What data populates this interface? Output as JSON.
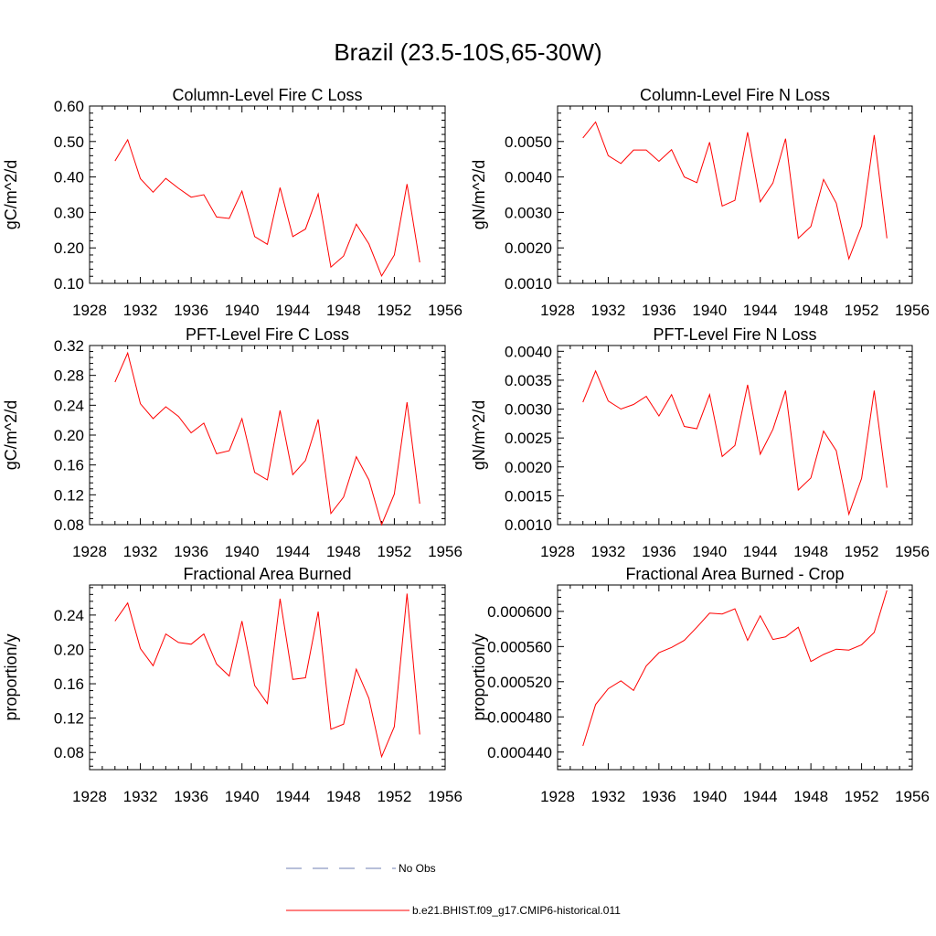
{
  "figure": {
    "title": "Brazil (23.5-10S,65-30W)",
    "colors": {
      "model": "#ff0000",
      "obs": "#6f7fb3",
      "axes": "#000000"
    }
  },
  "chart_data": [
    {
      "type": "line",
      "title": "Column-Level Fire C Loss",
      "xlabel": "",
      "ylabel": "gC/m^2/d",
      "xlim": [
        1928,
        1956
      ],
      "ylim": [
        0.1,
        0.6
      ],
      "xticks": [
        1928,
        1932,
        1936,
        1940,
        1944,
        1948,
        1952,
        1956
      ],
      "xtick_labels": [
        "1928",
        "1932",
        "1936",
        "1940",
        "1944",
        "1948",
        "1952",
        "1956"
      ],
      "yticks": [
        0.1,
        0.2,
        0.3,
        0.4,
        0.5,
        0.6
      ],
      "ytick_labels": [
        "0.10",
        "0.20",
        "0.30",
        "0.40",
        "0.50",
        "0.60"
      ],
      "x": [
        1930,
        1931,
        1932,
        1933,
        1934,
        1935,
        1936,
        1937,
        1938,
        1939,
        1940,
        1941,
        1942,
        1943,
        1944,
        1945,
        1946,
        1947,
        1948,
        1949,
        1950,
        1951,
        1952,
        1953,
        1954
      ],
      "series": [
        {
          "name": "b.e21.BHIST.f09_g17.CMIP6-historical.011",
          "values": [
            0.445,
            0.505,
            0.395,
            0.357,
            0.396,
            0.368,
            0.343,
            0.35,
            0.287,
            0.283,
            0.36,
            0.232,
            0.21,
            0.37,
            0.232,
            0.253,
            0.352,
            0.146,
            0.177,
            0.267,
            0.211,
            0.121,
            0.18,
            0.38,
            0.159
          ]
        }
      ]
    },
    {
      "type": "line",
      "title": "Column-Level Fire N Loss",
      "xlabel": "",
      "ylabel": "gN/m^2/d",
      "xlim": [
        1928,
        1956
      ],
      "ylim": [
        0.001,
        0.006
      ],
      "xticks": [
        1928,
        1932,
        1936,
        1940,
        1944,
        1948,
        1952,
        1956
      ],
      "xtick_labels": [
        "1928",
        "1932",
        "1936",
        "1940",
        "1944",
        "1948",
        "1952",
        "1956"
      ],
      "yticks": [
        0.001,
        0.002,
        0.003,
        0.004,
        0.005
      ],
      "ytick_labels": [
        "0.0010",
        "0.0020",
        "0.0030",
        "0.0040",
        "0.0050"
      ],
      "x": [
        1930,
        1931,
        1932,
        1933,
        1934,
        1935,
        1936,
        1937,
        1938,
        1939,
        1940,
        1941,
        1942,
        1943,
        1944,
        1945,
        1946,
        1947,
        1948,
        1949,
        1950,
        1951,
        1952,
        1953,
        1954
      ],
      "series": [
        {
          "name": "b.e21.BHIST.f09_g17.CMIP6-historical.011",
          "values": [
            0.0051,
            0.00555,
            0.0046,
            0.00438,
            0.00476,
            0.00476,
            0.00444,
            0.00477,
            0.004,
            0.00384,
            0.00498,
            0.00318,
            0.00334,
            0.00526,
            0.0033,
            0.00383,
            0.00508,
            0.00227,
            0.0026,
            0.00393,
            0.00326,
            0.00169,
            0.00262,
            0.00518,
            0.00227
          ]
        }
      ]
    },
    {
      "type": "line",
      "title": "PFT-Level Fire C Loss",
      "xlabel": "",
      "ylabel": "gC/m^2/d",
      "xlim": [
        1928,
        1956
      ],
      "ylim": [
        0.08,
        0.32
      ],
      "xticks": [
        1928,
        1932,
        1936,
        1940,
        1944,
        1948,
        1952,
        1956
      ],
      "xtick_labels": [
        "1928",
        "1932",
        "1936",
        "1940",
        "1944",
        "1948",
        "1952",
        "1956"
      ],
      "yticks": [
        0.08,
        0.12,
        0.16,
        0.2,
        0.24,
        0.28,
        0.32
      ],
      "ytick_labels": [
        "0.08",
        "0.12",
        "0.16",
        "0.20",
        "0.24",
        "0.28",
        "0.32"
      ],
      "x": [
        1930,
        1931,
        1932,
        1933,
        1934,
        1935,
        1936,
        1937,
        1938,
        1939,
        1940,
        1941,
        1942,
        1943,
        1944,
        1945,
        1946,
        1947,
        1948,
        1949,
        1950,
        1951,
        1952,
        1953,
        1954
      ],
      "series": [
        {
          "name": "b.e21.BHIST.f09_g17.CMIP6-historical.011",
          "values": [
            0.271,
            0.31,
            0.242,
            0.222,
            0.238,
            0.225,
            0.203,
            0.216,
            0.175,
            0.179,
            0.222,
            0.15,
            0.14,
            0.233,
            0.147,
            0.166,
            0.221,
            0.095,
            0.117,
            0.171,
            0.14,
            0.08,
            0.121,
            0.244,
            0.108
          ]
        }
      ]
    },
    {
      "type": "line",
      "title": "PFT-Level Fire N Loss",
      "xlabel": "",
      "ylabel": "gN/m^2/d",
      "xlim": [
        1928,
        1956
      ],
      "ylim": [
        0.001,
        0.0041
      ],
      "xticks": [
        1928,
        1932,
        1936,
        1940,
        1944,
        1948,
        1952,
        1956
      ],
      "xtick_labels": [
        "1928",
        "1932",
        "1936",
        "1940",
        "1944",
        "1948",
        "1952",
        "1956"
      ],
      "yticks": [
        0.001,
        0.0015,
        0.002,
        0.0025,
        0.003,
        0.0035,
        0.004
      ],
      "ytick_labels": [
        "0.0010",
        "0.0015",
        "0.0020",
        "0.0025",
        "0.0030",
        "0.0035",
        "0.0040"
      ],
      "x": [
        1930,
        1931,
        1932,
        1933,
        1934,
        1935,
        1936,
        1937,
        1938,
        1939,
        1940,
        1941,
        1942,
        1943,
        1944,
        1945,
        1946,
        1947,
        1948,
        1949,
        1950,
        1951,
        1952,
        1953,
        1954
      ],
      "series": [
        {
          "name": "b.e21.BHIST.f09_g17.CMIP6-historical.011",
          "values": [
            0.00312,
            0.00366,
            0.00314,
            0.003,
            0.00308,
            0.00322,
            0.00288,
            0.00325,
            0.0027,
            0.00266,
            0.00325,
            0.00218,
            0.00237,
            0.00342,
            0.00222,
            0.00265,
            0.00332,
            0.0016,
            0.00181,
            0.00262,
            0.00228,
            0.00118,
            0.0018,
            0.00332,
            0.00164
          ]
        }
      ]
    },
    {
      "type": "line",
      "title": "Fractional Area Burned",
      "xlabel": "",
      "ylabel": "proportion/y",
      "xlim": [
        1928,
        1956
      ],
      "ylim": [
        0.06,
        0.275
      ],
      "xticks": [
        1928,
        1932,
        1936,
        1940,
        1944,
        1948,
        1952,
        1956
      ],
      "xtick_labels": [
        "1928",
        "1932",
        "1936",
        "1940",
        "1944",
        "1948",
        "1952",
        "1956"
      ],
      "yticks": [
        0.08,
        0.12,
        0.16,
        0.2,
        0.24
      ],
      "ytick_labels": [
        "0.08",
        "0.12",
        "0.16",
        "0.20",
        "0.24"
      ],
      "x": [
        1930,
        1931,
        1932,
        1933,
        1934,
        1935,
        1936,
        1937,
        1938,
        1939,
        1940,
        1941,
        1942,
        1943,
        1944,
        1945,
        1946,
        1947,
        1948,
        1949,
        1950,
        1951,
        1952,
        1953,
        1954
      ],
      "series": [
        {
          "name": "b.e21.BHIST.f09_g17.CMIP6-historical.011",
          "values": [
            0.233,
            0.254,
            0.201,
            0.181,
            0.218,
            0.208,
            0.206,
            0.218,
            0.183,
            0.169,
            0.233,
            0.158,
            0.137,
            0.259,
            0.165,
            0.167,
            0.244,
            0.107,
            0.113,
            0.177,
            0.143,
            0.075,
            0.11,
            0.265,
            0.101
          ]
        }
      ]
    },
    {
      "type": "line",
      "title": "Fractional Area Burned - Crop",
      "xlabel": "",
      "ylabel": "proportion/y",
      "xlim": [
        1928,
        1956
      ],
      "ylim": [
        0.00042,
        0.00063
      ],
      "xticks": [
        1928,
        1932,
        1936,
        1940,
        1944,
        1948,
        1952,
        1956
      ],
      "xtick_labels": [
        "1928",
        "1932",
        "1936",
        "1940",
        "1944",
        "1948",
        "1952",
        "1956"
      ],
      "yticks": [
        0.00044,
        0.00048,
        0.00052,
        0.00056,
        0.0006
      ],
      "ytick_labels": [
        "0.000440",
        "0.000480",
        "0.000520",
        "0.000560",
        "0.000600"
      ],
      "x": [
        1930,
        1931,
        1932,
        1933,
        1934,
        1935,
        1936,
        1937,
        1938,
        1939,
        1940,
        1941,
        1942,
        1943,
        1944,
        1945,
        1946,
        1947,
        1948,
        1949,
        1950,
        1951,
        1952,
        1953,
        1954
      ],
      "series": [
        {
          "name": "b.e21.BHIST.f09_g17.CMIP6-historical.011",
          "values": [
            0.000447,
            0.000494,
            0.000512,
            0.000521,
            0.00051,
            0.000538,
            0.000553,
            0.000559,
            0.000567,
            0.000582,
            0.000598,
            0.000597,
            0.000603,
            0.000567,
            0.000595,
            0.000568,
            0.000571,
            0.000582,
            0.000543,
            0.000551,
            0.000557,
            0.000556,
            0.000562,
            0.000576,
            0.000624
          ]
        }
      ]
    }
  ],
  "legend": {
    "placement": "bottom-center",
    "entries": [
      {
        "label": "No Obs",
        "style": "dashed",
        "color": "#6f7fb3"
      },
      {
        "label": "b.e21.BHIST.f09_g17.CMIP6-historical.011",
        "style": "solid",
        "color": "#ff0000"
      }
    ]
  }
}
